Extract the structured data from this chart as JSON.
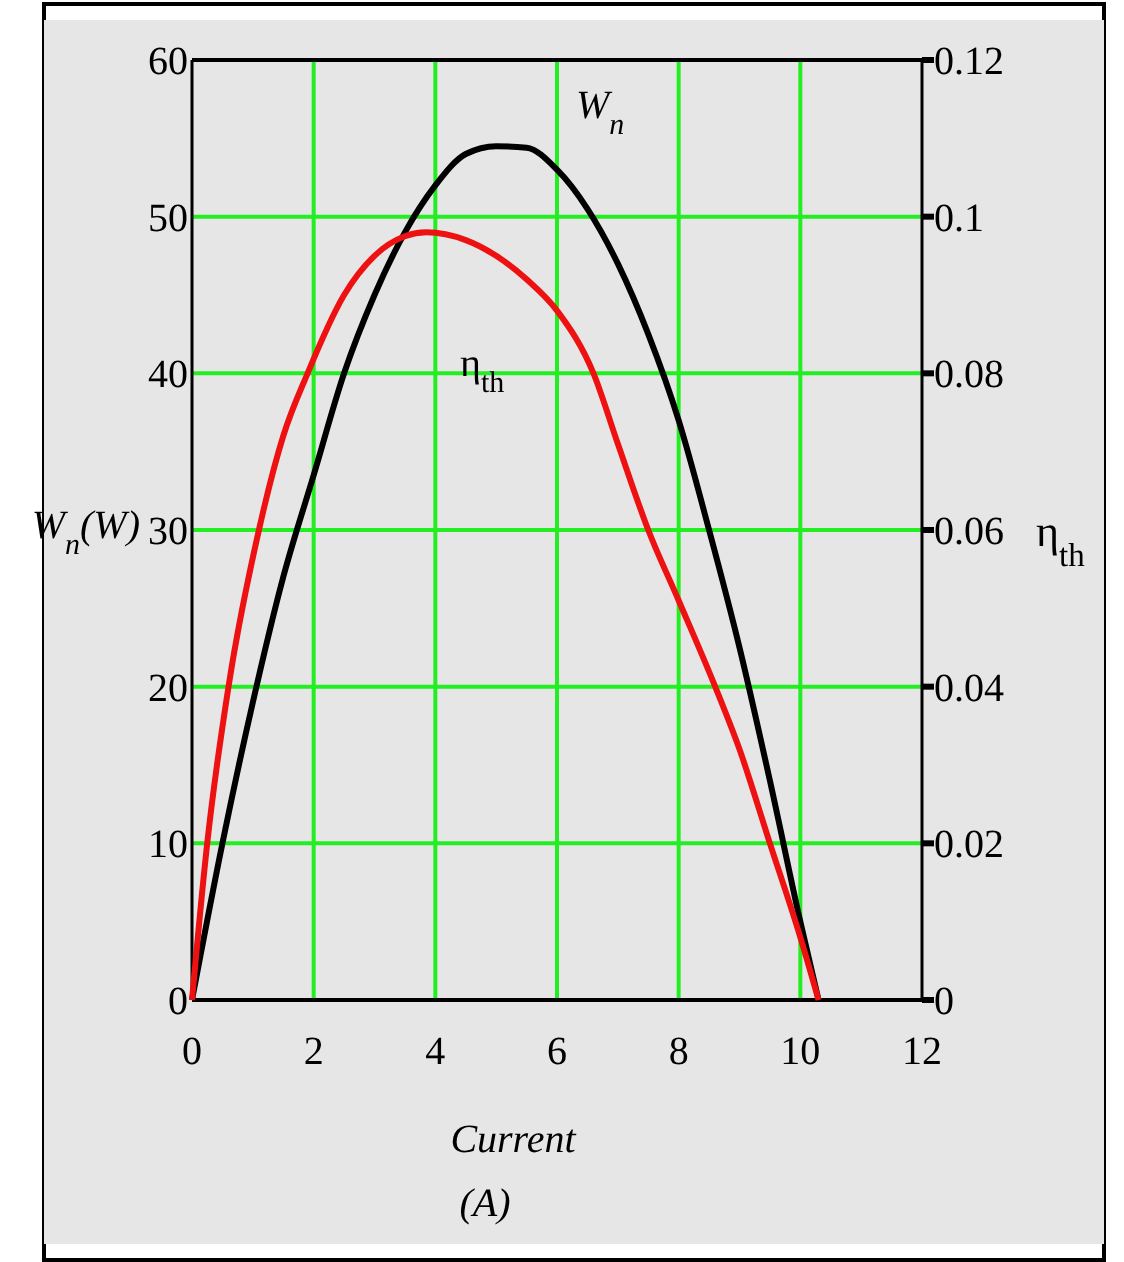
{
  "chart_data": {
    "type": "line",
    "xlabel": "Current (A)",
    "ylabel": "W$_{n}$(W)",
    "y2label": "η$_{th}$",
    "xlim": [
      0,
      12
    ],
    "xticks": [
      0,
      2,
      4,
      6,
      8,
      10,
      12
    ],
    "ylim": [
      0,
      60
    ],
    "yticks": [
      0,
      10,
      20,
      30,
      40,
      50,
      60
    ],
    "y2lim": [
      0,
      0.12
    ],
    "y2ticks": [
      0,
      0.02,
      0.04,
      0.06,
      0.08,
      0.1,
      0.12
    ],
    "grid": true,
    "marker": "none",
    "line_style": "solid",
    "series": [
      {
        "name": "W$_{n}$",
        "color": "#000000",
        "x": [
          0,
          0.5,
          1,
          1.5,
          2,
          2.5,
          3,
          3.5,
          4,
          4.5,
          5,
          5.5,
          6,
          6.5,
          7,
          7.5,
          8,
          8.5,
          9,
          9.5,
          10,
          10.3
        ],
        "values": [
          0,
          10,
          19,
          27,
          33.5,
          40,
          45,
          49,
          52,
          54,
          54.5,
          54.4,
          53,
          50.5,
          47,
          42.5,
          37,
          30,
          22.5,
          14,
          5,
          0
        ]
      },
      {
        "name": "η$_{th}$",
        "color": "#ee1111",
        "axis": "y2",
        "x": [
          0,
          0.25,
          0.6,
          1.1,
          1.5,
          1.9,
          2.5,
          3,
          3.5,
          3.85,
          4.5,
          5,
          5.5,
          6,
          6.6,
          7,
          7.5,
          8,
          8.6,
          9,
          9.5,
          10,
          10.3
        ],
        "values": [
          0,
          0.02,
          0.04,
          0.06,
          0.072,
          0.08,
          0.09,
          0.095,
          0.0975,
          0.098,
          0.097,
          0.095,
          0.092,
          0.088,
          0.08,
          0.071,
          0.06,
          0.051,
          0.04,
          0.032,
          0.02,
          0.008,
          0
        ]
      }
    ]
  }
}
